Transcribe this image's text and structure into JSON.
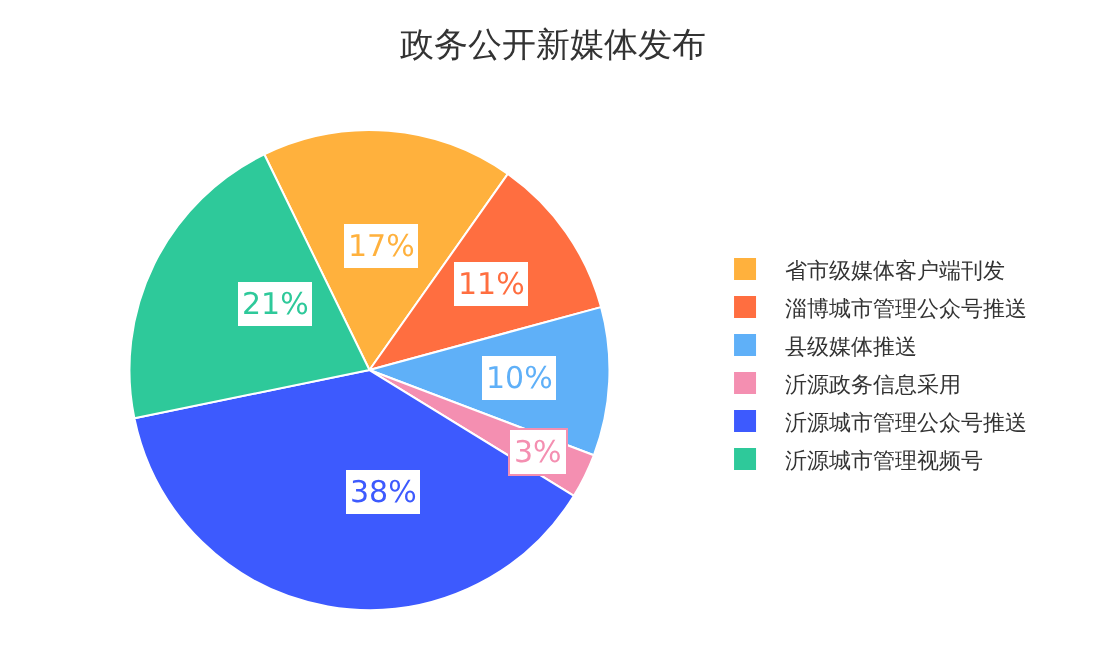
{
  "chart_data": {
    "type": "pie",
    "title": "政务公开新媒体发布",
    "categories": [
      "省市级媒体客户端刊发",
      "淄博城市管理公众号推送",
      "县级媒体推送",
      "沂源政务信息采用",
      "沂源城市管理公众号推送",
      "沂源城市管理视频号"
    ],
    "values": [
      17,
      11,
      10,
      3,
      38,
      21
    ],
    "value_labels": [
      "17%",
      "11%",
      "10%",
      "3%",
      "38%",
      "21%"
    ],
    "colors": [
      "#ffb13d",
      "#ff6e40",
      "#5fb0f8",
      "#f48fb1",
      "#3d5afe",
      "#2ec99a"
    ],
    "legend": "right"
  }
}
